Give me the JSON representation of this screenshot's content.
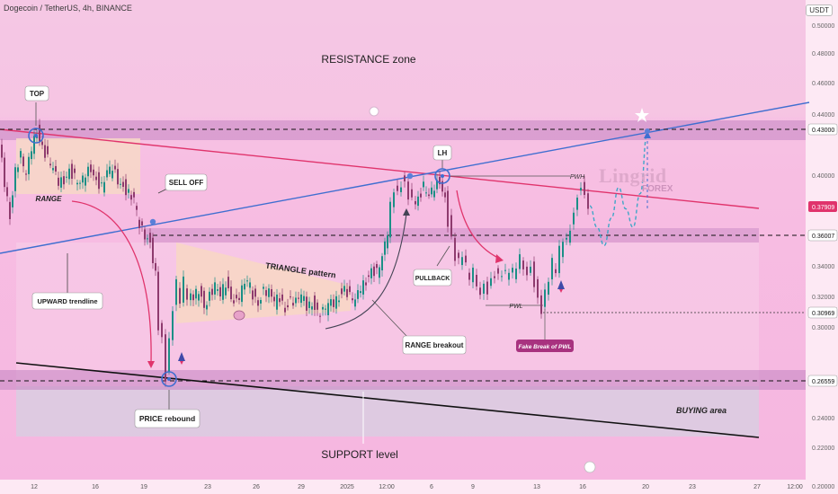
{
  "header": {
    "symbol_title": "Dogecoin / TetherUS, 4h, BINANCE",
    "currency": "USDT"
  },
  "watermark": {
    "brand": "Lingrid",
    "sub": "FOREX"
  },
  "annotations": {
    "resistance_zone": "RESISTANCE zone",
    "top": "TOP",
    "range": "RANGE",
    "sell_off": "SELL OFF",
    "upward_trendline": "UPWARD trendline",
    "triangle_pattern": "TRIANGLE pattern",
    "lh": "LH",
    "pwh": "PWH",
    "pullback": "PULLBACK",
    "pwl": "PWL",
    "fake_break": "Fake Break of PWL",
    "range_breakout": "RANGE breakout",
    "price_rebound": "PRICE rebound",
    "buying_area": "BUYING area",
    "support_level": "SUPPORT level"
  },
  "colors": {
    "candle_up": "#1b8f86",
    "candle_down": "#8e3b6e",
    "resistance_line": "#e0346c",
    "uptrend_line": "#3f6ed0",
    "support_line": "#111111",
    "zone_fill": "#c77fc5",
    "last_price_badge": "#e0346c"
  },
  "chart_data": {
    "type": "candlestick",
    "symbol": "Dogecoin / TetherUS",
    "timeframe": "4h",
    "exchange": "BINANCE",
    "y_axis": {
      "ticks": [
        "0.50000",
        "0.48000",
        "0.46000",
        "0.44000",
        "0.43000",
        "0.40000",
        "0.37909",
        "0.36007",
        "0.34000",
        "0.32000",
        "0.30969",
        "0.30000",
        "0.26559",
        "0.24000",
        "0.22000",
        "0.20000"
      ],
      "scale": "log"
    },
    "x_axis": {
      "ticks": [
        "12",
        "16",
        "19",
        "23",
        "26",
        "29",
        "2025",
        "12:00",
        "6",
        "9",
        "13",
        "16",
        "20",
        "23",
        "27",
        "12:00"
      ]
    },
    "levels": [
      {
        "label": "0.43000",
        "value": 0.43,
        "style": "dashed"
      },
      {
        "label": "0.36007",
        "value": 0.36007,
        "style": "dashed"
      },
      {
        "label": "0.30969",
        "value": 0.30969,
        "style": "dotted"
      },
      {
        "label": "0.26559",
        "value": 0.26559,
        "style": "dashed"
      }
    ],
    "last_price": "0.37909",
    "price_path": [
      [
        0,
        0.42
      ],
      [
        6,
        0.395
      ],
      [
        12,
        0.375
      ],
      [
        18,
        0.405
      ],
      [
        24,
        0.412
      ],
      [
        30,
        0.398
      ],
      [
        36,
        0.418
      ],
      [
        42,
        0.43
      ],
      [
        48,
        0.42
      ],
      [
        54,
        0.41
      ],
      [
        60,
        0.402
      ],
      [
        66,
        0.395
      ],
      [
        72,
        0.398
      ],
      [
        78,
        0.405
      ],
      [
        84,
        0.398
      ],
      [
        90,
        0.392
      ],
      [
        96,
        0.4
      ],
      [
        102,
        0.406
      ],
      [
        108,
        0.398
      ],
      [
        114,
        0.392
      ],
      [
        120,
        0.4
      ],
      [
        126,
        0.404
      ],
      [
        132,
        0.398
      ],
      [
        138,
        0.394
      ],
      [
        144,
        0.388
      ],
      [
        150,
        0.382
      ],
      [
        156,
        0.366
      ],
      [
        162,
        0.362
      ],
      [
        168,
        0.358
      ],
      [
        174,
        0.335
      ],
      [
        178,
        0.3
      ],
      [
        182,
        0.292
      ],
      [
        186,
        0.268
      ],
      [
        190,
        0.29
      ],
      [
        194,
        0.315
      ],
      [
        198,
        0.328
      ],
      [
        202,
        0.32
      ],
      [
        206,
        0.33
      ],
      [
        210,
        0.322
      ],
      [
        216,
        0.318
      ],
      [
        222,
        0.326
      ],
      [
        228,
        0.316
      ],
      [
        234,
        0.322
      ],
      [
        240,
        0.326
      ],
      [
        246,
        0.32
      ],
      [
        252,
        0.33
      ],
      [
        258,
        0.322
      ],
      [
        264,
        0.318
      ],
      [
        270,
        0.324
      ],
      [
        276,
        0.33
      ],
      [
        282,
        0.322
      ],
      [
        288,
        0.318
      ],
      [
        294,
        0.326
      ],
      [
        300,
        0.322
      ],
      [
        306,
        0.316
      ],
      [
        312,
        0.32
      ],
      [
        318,
        0.314
      ],
      [
        324,
        0.32
      ],
      [
        330,
        0.316
      ],
      [
        336,
        0.32
      ],
      [
        342,
        0.314
      ],
      [
        348,
        0.318
      ],
      [
        354,
        0.312
      ],
      [
        360,
        0.31
      ],
      [
        366,
        0.314
      ],
      [
        372,
        0.316
      ],
      [
        378,
        0.322
      ],
      [
        384,
        0.328
      ],
      [
        390,
        0.32
      ],
      [
        396,
        0.316
      ],
      [
        402,
        0.326
      ],
      [
        408,
        0.332
      ],
      [
        414,
        0.34
      ],
      [
        420,
        0.336
      ],
      [
        426,
        0.344
      ],
      [
        432,
        0.362
      ],
      [
        436,
        0.38
      ],
      [
        440,
        0.392
      ],
      [
        444,
        0.386
      ],
      [
        448,
        0.396
      ],
      [
        452,
        0.392
      ],
      [
        456,
        0.388
      ],
      [
        460,
        0.382
      ],
      [
        466,
        0.386
      ],
      [
        472,
        0.392
      ],
      [
        478,
        0.384
      ],
      [
        484,
        0.392
      ],
      [
        490,
        0.398
      ],
      [
        496,
        0.386
      ],
      [
        500,
        0.37
      ],
      [
        504,
        0.356
      ],
      [
        508,
        0.348
      ],
      [
        512,
        0.342
      ],
      [
        516,
        0.35
      ],
      [
        520,
        0.34
      ],
      [
        524,
        0.334
      ],
      [
        528,
        0.338
      ],
      [
        532,
        0.328
      ],
      [
        536,
        0.322
      ],
      [
        540,
        0.328
      ],
      [
        544,
        0.324
      ],
      [
        548,
        0.33
      ],
      [
        552,
        0.336
      ],
      [
        556,
        0.332
      ],
      [
        560,
        0.338
      ],
      [
        564,
        0.334
      ],
      [
        568,
        0.34
      ],
      [
        572,
        0.336
      ],
      [
        576,
        0.342
      ],
      [
        580,
        0.346
      ],
      [
        584,
        0.34
      ],
      [
        588,
        0.334
      ],
      [
        592,
        0.34
      ],
      [
        596,
        0.328
      ],
      [
        600,
        0.318
      ],
      [
        604,
        0.312
      ],
      [
        608,
        0.322
      ],
      [
        612,
        0.334
      ],
      [
        616,
        0.342
      ],
      [
        620,
        0.34
      ],
      [
        624,
        0.35
      ],
      [
        628,
        0.36
      ],
      [
        632,
        0.356
      ],
      [
        636,
        0.366
      ],
      [
        640,
        0.374
      ],
      [
        644,
        0.386
      ],
      [
        648,
        0.392
      ],
      [
        652,
        0.386
      ],
      [
        656,
        0.38
      ]
    ],
    "projection_path": [
      [
        656,
        0.38
      ],
      [
        664,
        0.366
      ],
      [
        672,
        0.354
      ],
      [
        680,
        0.372
      ],
      [
        688,
        0.392
      ],
      [
        696,
        0.378
      ],
      [
        704,
        0.366
      ],
      [
        712,
        0.388
      ],
      [
        720,
        0.428
      ]
    ]
  }
}
